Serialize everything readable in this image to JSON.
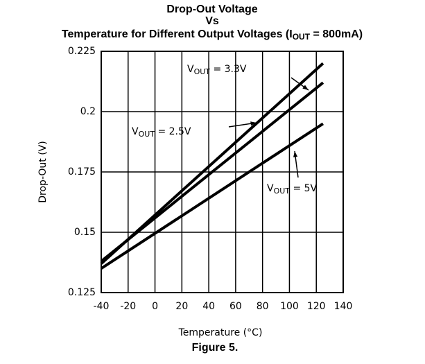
{
  "chart_data": {
    "type": "line",
    "title": {
      "lines": [
        "Drop-Out Voltage",
        "Vs"
      ],
      "line3": {
        "text": "Temperature for Different Output Voltages (I",
        "sub": "OUT",
        "tail": " = 800mA)"
      }
    },
    "xlabel": "Temperature (°C)",
    "ylabel": "Drop-Out (V)",
    "caption": "Figure 5.",
    "xlim": [
      -40,
      140
    ],
    "xticks": [
      -40,
      -20,
      0,
      20,
      40,
      60,
      80,
      100,
      120,
      140
    ],
    "ylim": [
      0.125,
      0.225
    ],
    "yticks": [
      0.125,
      0.15,
      0.175,
      0.2,
      0.225
    ],
    "grid": true,
    "series": [
      {
        "label": {
          "text": "V",
          "sub": "OUT",
          "tail": " = 3.3V"
        },
        "color": "#000",
        "x": [
          -40,
          125
        ],
        "values": [
          0.137,
          0.22
        ]
      },
      {
        "label": {
          "text": "V",
          "sub": "OUT",
          "tail": " = 2.5V"
        },
        "color": "#000",
        "x": [
          -40,
          125
        ],
        "values": [
          0.138,
          0.212
        ]
      },
      {
        "label": {
          "text": "V",
          "sub": "OUT",
          "tail": " = 5V"
        },
        "color": "#000",
        "x": [
          -40,
          125
        ],
        "values": [
          0.135,
          0.195
        ]
      }
    ]
  }
}
